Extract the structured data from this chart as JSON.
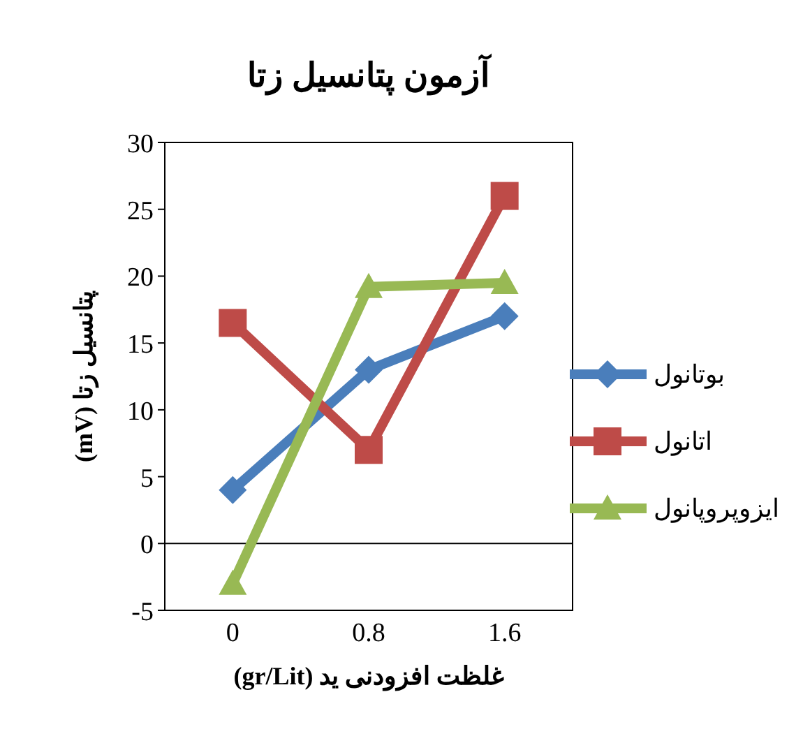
{
  "chart_data": {
    "type": "line",
    "title": "آزمون پتانسیل زتا",
    "xlabel": "غلظت افزودنی ید (gr/Lit)",
    "ylabel": "پتانسیل زتا (mV)",
    "categories": [
      "0",
      "0.8",
      "1.6"
    ],
    "series": [
      {
        "name": "بوتانول",
        "color": "#4a7ebb",
        "marker": "diamond",
        "values": [
          4,
          13,
          17
        ]
      },
      {
        "name": "اتانول",
        "color": "#be4b48",
        "marker": "square",
        "values": [
          16.5,
          7,
          26
        ]
      },
      {
        "name": "ایزوپروپانول",
        "color": "#98b954",
        "marker": "triangle",
        "values": [
          -3,
          19.2,
          19.5
        ]
      }
    ],
    "ylim": [
      -5,
      30
    ],
    "yticks": [
      -5,
      0,
      5,
      10,
      15,
      20,
      25,
      30
    ],
    "grid": false,
    "ref_lines": [
      {
        "axis": "y",
        "value": 0
      }
    ],
    "legend": "right",
    "line_style": "solid"
  }
}
